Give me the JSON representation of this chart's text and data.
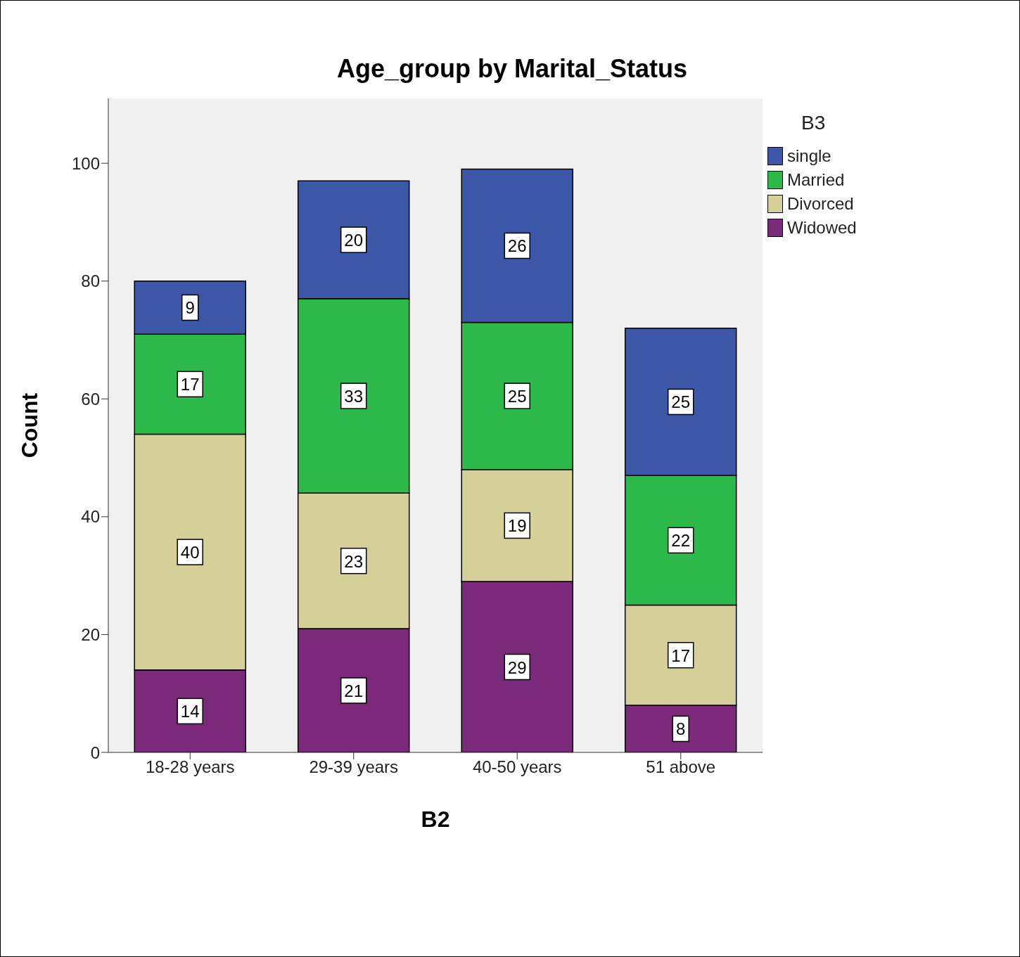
{
  "chart_data": {
    "type": "bar",
    "title": "Age_group by Marital_Status",
    "xlabel": "B2",
    "ylabel": "Count",
    "legend_title": "B3",
    "categories": [
      "18-28 years",
      "29-39 years",
      "40-50 years",
      "51 above"
    ],
    "series": [
      {
        "name": "Widowed",
        "color": "#7b2a7b",
        "values": [
          14,
          21,
          29,
          8
        ]
      },
      {
        "name": "Divorced",
        "color": "#d5cf98",
        "values": [
          40,
          23,
          19,
          17
        ]
      },
      {
        "name": "Married",
        "color": "#2db84a",
        "values": [
          17,
          33,
          25,
          22
        ]
      },
      {
        "name": "single",
        "color": "#3c56a8",
        "values": [
          9,
          20,
          26,
          25
        ]
      }
    ],
    "stacked": true,
    "data_labels": true,
    "ylim": [
      0,
      111
    ],
    "yticks": [
      0,
      20,
      40,
      60,
      80,
      100
    ],
    "legend": "top right"
  }
}
